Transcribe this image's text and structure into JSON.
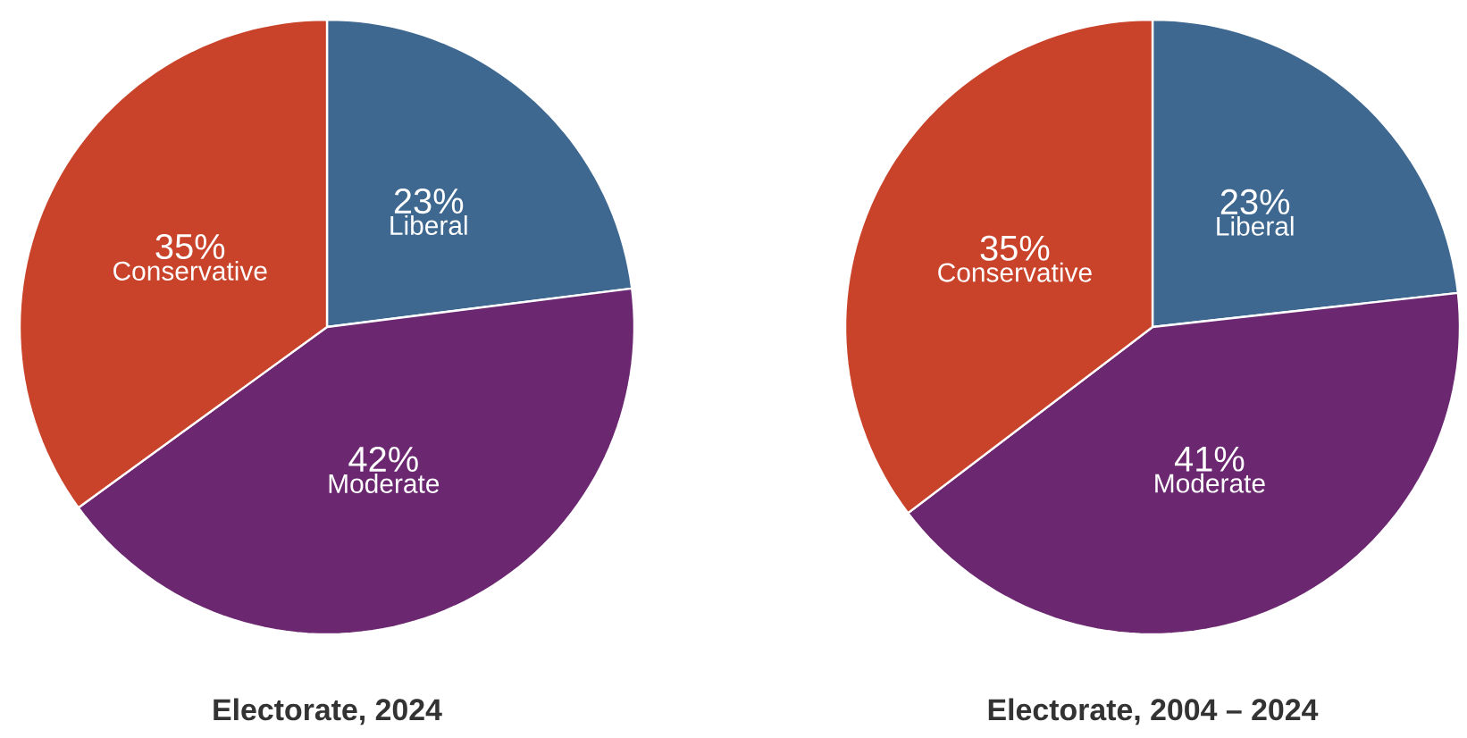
{
  "chart_data": [
    {
      "type": "pie",
      "title": "Electorate, 2024",
      "categories": [
        "Liberal",
        "Moderate",
        "Conservative"
      ],
      "values": [
        23,
        42,
        35
      ],
      "value_labels": [
        "23%",
        "42%",
        "35%"
      ],
      "colors": [
        "#3e6890",
        "#6b2770",
        "#c9432a"
      ]
    },
    {
      "type": "pie",
      "title": "Electorate, 2004 – 2024",
      "categories": [
        "Liberal",
        "Moderate",
        "Conservative"
      ],
      "values": [
        23,
        41,
        35
      ],
      "value_labels": [
        "23%",
        "41%",
        "35%"
      ],
      "colors": [
        "#3e6890",
        "#6b2770",
        "#c9432a"
      ]
    }
  ]
}
